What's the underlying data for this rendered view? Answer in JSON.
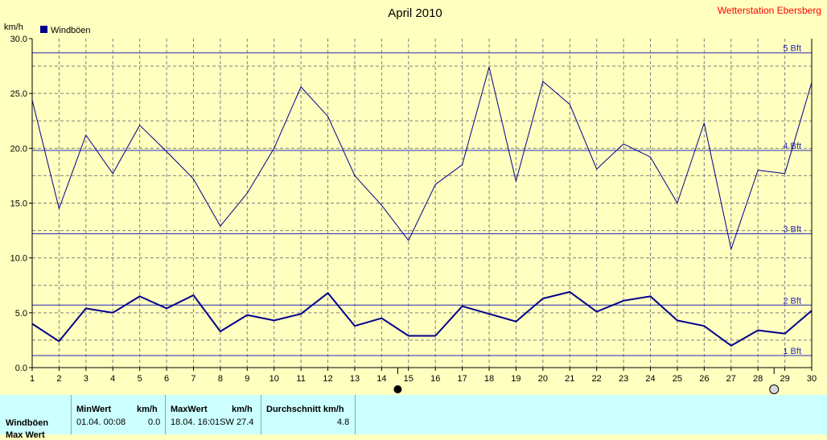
{
  "chart_data": {
    "type": "line",
    "title": "April 2010",
    "station": "Wetterstation Ebersberg",
    "ylabel": "km/h",
    "ylim": [
      0,
      30
    ],
    "yticks": [
      "0.0",
      "5.0",
      "10.0",
      "15.0",
      "20.0",
      "25.0",
      "30.0"
    ],
    "x": [
      1,
      2,
      3,
      4,
      5,
      6,
      7,
      8,
      9,
      10,
      11,
      12,
      13,
      14,
      15,
      16,
      17,
      18,
      19,
      20,
      21,
      22,
      23,
      24,
      25,
      26,
      27,
      28,
      29,
      30
    ],
    "legend": "Windböen",
    "legend_position": "top-left",
    "grid": true,
    "series": [
      {
        "role": "max",
        "color": "#00008b",
        "width": 1,
        "values": [
          24.4,
          14.5,
          21.2,
          17.7,
          22.1,
          19.7,
          17.2,
          12.9,
          15.9,
          20.0,
          25.6,
          22.9,
          17.5,
          14.8,
          11.6,
          16.7,
          18.5,
          27.4,
          17.0,
          26.1,
          24.0,
          18.1,
          20.4,
          19.2,
          15.0,
          22.3,
          10.8,
          18.0,
          17.7,
          26.0
        ]
      },
      {
        "role": "avg",
        "color": "#00008b",
        "width": 2,
        "values": [
          4.0,
          2.4,
          5.4,
          5.0,
          6.5,
          5.4,
          6.6,
          3.3,
          4.8,
          4.3,
          4.9,
          6.8,
          3.8,
          4.5,
          2.9,
          2.9,
          5.6,
          4.9,
          4.2,
          6.3,
          6.9,
          5.1,
          6.1,
          6.5,
          4.3,
          3.8,
          2.0,
          3.4,
          3.1,
          5.2
        ]
      }
    ],
    "beaufort": [
      {
        "label": "1 Bft",
        "value": 1.1
      },
      {
        "label": "2 Bft",
        "value": 5.7
      },
      {
        "label": "3 Bft",
        "value": 12.2
      },
      {
        "label": "4 Bft",
        "value": 19.8
      },
      {
        "label": "5 Bft",
        "value": 28.7
      }
    ],
    "moon_markers": [
      {
        "x": 14.6,
        "phase": "new"
      },
      {
        "x": 28.6,
        "phase": "full"
      }
    ],
    "colors": {
      "background": "#ffffc0",
      "line": "#00008b",
      "grid": "#808080",
      "station": "#ff0000",
      "panel": "#ccffff"
    }
  },
  "table": {
    "row_label": "Windböen",
    "row_label_2": "Max Wert",
    "min_header": "MinWert",
    "min_unit": "km/h",
    "max_header": "MaxWert",
    "max_unit": "km/h",
    "avg_header": "Durchschnitt km/h",
    "min_time": "01.04.  00:08",
    "min_value": "0.0",
    "max_time": "18.04.  16:01SW",
    "max_value": "27.4",
    "avg_value": "4.8"
  }
}
